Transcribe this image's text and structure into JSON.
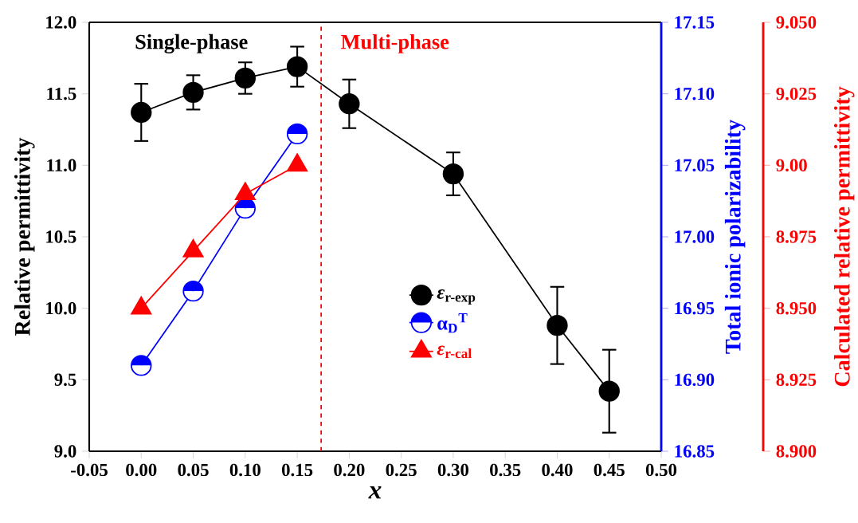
{
  "chart_data": {
    "type": "line",
    "xlabel": "x",
    "ylabel": "Relative permittivity",
    "y2label": "Total ionic polarizability",
    "y3label": "Calculated relative permittivity",
    "x": [
      0,
      0.05,
      0.1,
      0.15,
      0.2,
      0.3,
      0.4,
      0.45
    ],
    "series": [
      {
        "name": "*ε*$_{r-exp}$",
        "color": "#000000",
        "marker": "circle",
        "values": [
          11.37,
          11.51,
          11.61,
          11.69,
          11.43,
          10.94,
          9.88,
          9.42
        ],
        "errors": [
          0.2,
          0.12,
          0.11,
          0.14,
          0.17,
          0.15,
          0.27,
          0.29
        ]
      },
      {
        "name": "α$_{D}$$^{T}$",
        "color": "#0000ff",
        "marker": "circle",
        "axis": "y2",
        "x": [
          0,
          0.05,
          0.1,
          0.15
        ],
        "values": [
          16.91,
          16.962,
          17.02,
          17.072
        ]
      },
      {
        "name": "*ε*$_{r-cal}$",
        "color": "#ff0000",
        "marker": "triangle",
        "axis": "y3",
        "x": [
          0,
          0.05,
          0.1,
          0.15
        ],
        "values": [
          8.95,
          8.97,
          8.99,
          9.0
        ]
      }
    ],
    "xlim": [
      -0.05,
      0.5
    ],
    "xticks": [
      {
        "value": -0.05,
        "label": "-0.05"
      },
      {
        "value": 0,
        "label": "0.00"
      },
      {
        "value": 0.05,
        "label": "0.05"
      },
      {
        "value": 0.1,
        "label": "0.10"
      },
      {
        "value": 0.15,
        "label": "0.15"
      },
      {
        "value": 0.2,
        "label": "0.20"
      },
      {
        "value": 0.25,
        "label": "0.25"
      },
      {
        "value": 0.3,
        "label": "0.30"
      },
      {
        "value": 0.35,
        "label": "0.35"
      },
      {
        "value": 0.4,
        "label": "0.40"
      },
      {
        "value": 0.45,
        "label": "0.45"
      },
      {
        "value": 0.5,
        "label": "0.50"
      }
    ],
    "ylim": [
      9.0,
      12.0
    ],
    "yticks": [
      {
        "value": 9.0,
        "label": "9.0"
      },
      {
        "value": 9.5,
        "label": "9.5"
      },
      {
        "value": 10.0,
        "label": "10.0"
      },
      {
        "value": 10.5,
        "label": "10.5"
      },
      {
        "value": 11.0,
        "label": "11.0"
      },
      {
        "value": 11.5,
        "label": "11.5"
      },
      {
        "value": 12.0,
        "label": "12.0"
      }
    ],
    "y2lim": [
      16.85,
      17.15
    ],
    "y2ticks": [
      16.85,
      {
        "value": 16.9,
        "label": "16.90"
      },
      16.95,
      {
        "value": 17.0,
        "label": "17.00"
      },
      17.05,
      {
        "value": 17.1,
        "label": "17.10"
      },
      17.15
    ],
    "y3lim": [
      8.9,
      9.05
    ],
    "y3ticks": [
      {
        "value": 8.9,
        "label": "8.900"
      },
      8.925,
      {
        "value": 8.95,
        "label": "8.950"
      },
      8.975,
      {
        "value": 9.0,
        "label": "9.00"
      },
      9.025,
      {
        "value": 9.05,
        "label": "9.050"
      }
    ],
    "ref_lines": [
      {
        "axis": "x",
        "value": 0.173,
        "color": "#ff0000",
        "line_style": "dashed"
      }
    ],
    "annotations": [
      "Single-phase",
      "Multi-phase"
    ],
    "legend": "center",
    "grid": false,
    "line_style": "solid"
  }
}
